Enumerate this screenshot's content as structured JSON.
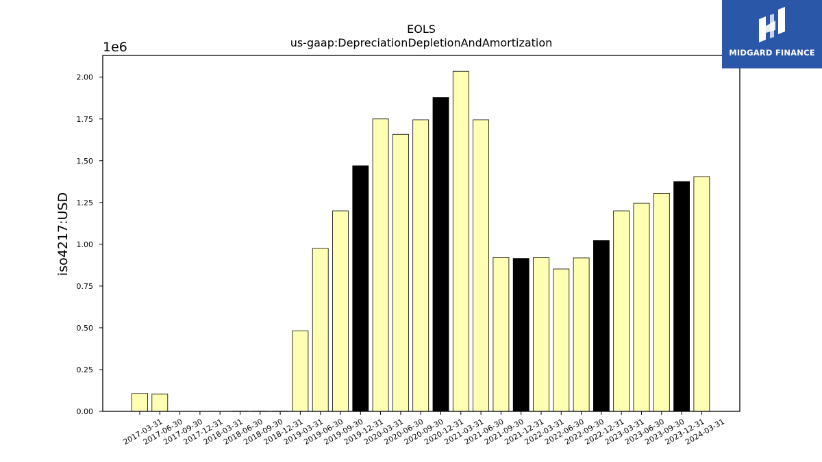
{
  "chart_data": {
    "type": "bar",
    "title": "EOLS",
    "subtitle": "us-gaap:DepreciationDepletionAndAmortization",
    "ylabel": "iso4217:USD",
    "xlabel": "",
    "y_scale_label": "1e6",
    "ylim": [
      0,
      2130000
    ],
    "yticks": [
      {
        "value": 0,
        "label": "0.00"
      },
      {
        "value": 250000,
        "label": "0.25"
      },
      {
        "value": 500000,
        "label": "0.50"
      },
      {
        "value": 750000,
        "label": "0.75"
      },
      {
        "value": 1000000,
        "label": "1.00"
      },
      {
        "value": 1250000,
        "label": "1.25"
      },
      {
        "value": 1500000,
        "label": "1.50"
      },
      {
        "value": 1750000,
        "label": "1.75"
      },
      {
        "value": 2000000,
        "label": "2.00"
      }
    ],
    "categories": [
      "2017-03-31",
      "2017-06-30",
      "2017-09-30",
      "2017-12-31",
      "2018-03-31",
      "2018-06-30",
      "2018-09-30",
      "2018-12-31",
      "2019-03-31",
      "2019-06-30",
      "2019-09-30",
      "2019-12-31",
      "2020-03-31",
      "2020-06-30",
      "2020-09-30",
      "2020-12-31",
      "2021-03-31",
      "2021-06-30",
      "2021-09-30",
      "2021-12-31",
      "2022-03-31",
      "2022-06-30",
      "2022-09-30",
      "2022-12-31",
      "2023-03-31",
      "2023-06-30",
      "2023-09-30",
      "2023-12-31",
      "2024-03-31"
    ],
    "values": [
      108000,
      103000,
      0,
      0,
      0,
      1500,
      1500,
      1500,
      482000,
      975000,
      1200000,
      1470000,
      1750000,
      1658000,
      1745000,
      1878000,
      2035000,
      1745000,
      920000,
      915000,
      920000,
      852000,
      918000,
      1022000,
      1200000,
      1245000,
      1305000,
      1375000,
      1405000
    ],
    "highlight": [
      false,
      false,
      false,
      false,
      false,
      false,
      false,
      false,
      false,
      false,
      false,
      true,
      false,
      false,
      false,
      true,
      false,
      false,
      false,
      true,
      false,
      false,
      false,
      true,
      false,
      false,
      false,
      true,
      false
    ],
    "colors": {
      "normal": "#ffffb3",
      "highlight": "#000000",
      "edge": "#000000"
    },
    "grid": false
  },
  "logo": {
    "text": "MIDGARD FINANCE",
    "background": "#2a57a8"
  }
}
